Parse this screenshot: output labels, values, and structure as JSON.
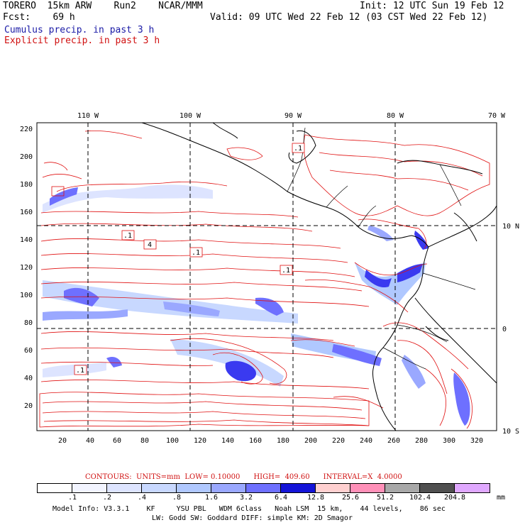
{
  "header": {
    "line1_left": "TORERO  15km ARW    Run2    NCAR/MMM",
    "line1_right": "Init: 12 UTC Sun 19 Feb 12",
    "line2_left": "Fcst:    69 h",
    "line2_right": "Valid: 09 UTC Wed 22 Feb 12 (03 CST Wed 22 Feb 12)",
    "line3": "Cumulus precip. in past 3 h",
    "line4": "Explicit precip. in past 3 h"
  },
  "map": {
    "top_lon_labels": [
      "110 W",
      "100 W",
      "90 W",
      "80 W",
      "70 W"
    ],
    "right_lat_labels": [
      "10 N",
      "0",
      "10 S"
    ],
    "left_y_ticks": [
      "220",
      "200",
      "180",
      "160",
      "140",
      "120",
      "100",
      "80",
      "60",
      "40",
      "20"
    ],
    "bottom_x_ticks": [
      "20",
      "40",
      "60",
      "80",
      "100",
      "120",
      "140",
      "160",
      "180",
      "200",
      "220",
      "240",
      "260",
      "280",
      "300",
      "320"
    ],
    "contour_labels": [
      ".1",
      ".1",
      "4",
      ".1",
      ".1",
      ".1"
    ],
    "colors": {
      "contour": "#e01010",
      "grid": "#000000",
      "coast": "#000000"
    }
  },
  "legend": {
    "contours_text": "CONTOURS:  UNITS=mm  LOW= 0.10000      HIGH=  409.60      INTERVAL=X  4.0000",
    "colors": [
      "#ffffff",
      "#f2f4ff",
      "#dde4ff",
      "#c8d8ff",
      "#b0c8ff",
      "#9aa8ff",
      "#6e70ff",
      "#3a3af0",
      "#1414d8",
      "#ffd0d0",
      "#ff90b8",
      "#a8a8a8",
      "#505050",
      "#e0a8ff"
    ],
    "labels": [
      ".1",
      ".2",
      ".4",
      ".8",
      "1.6",
      "3.2",
      "6.4",
      "12.8",
      "25.6",
      "51.2",
      "102.4",
      "204.8"
    ],
    "unit": "mm"
  },
  "footer": {
    "line1": "Model Info: V3.3.1    KF     YSU PBL   WDM 6class   Noah LSM  15 km,    44 levels,    86 sec",
    "line2": "LW: Godd SW: Goddard DIFF: simple KM: 2D Smagor"
  }
}
